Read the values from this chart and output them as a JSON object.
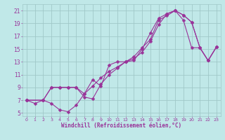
{
  "xlabel": "Windchill (Refroidissement éolien,°C)",
  "bg_color": "#c0e8e8",
  "grid_color": "#a0c8c8",
  "line_color": "#993399",
  "xlim": [
    -0.5,
    23.5
  ],
  "ylim": [
    4.5,
    22.0
  ],
  "xticks": [
    0,
    1,
    2,
    3,
    4,
    5,
    6,
    7,
    8,
    9,
    10,
    11,
    12,
    13,
    14,
    15,
    16,
    17,
    18,
    19,
    20,
    21,
    22,
    23
  ],
  "yticks": [
    5,
    7,
    9,
    11,
    13,
    15,
    17,
    19,
    21
  ],
  "line1_x": [
    0,
    1,
    2,
    3,
    4,
    5,
    6,
    7,
    8,
    9,
    10,
    11,
    12,
    13,
    14,
    15,
    16,
    17,
    18,
    19,
    20,
    21,
    22,
    23
  ],
  "line1_y": [
    7.0,
    6.5,
    7.0,
    6.5,
    5.5,
    5.2,
    6.2,
    8.0,
    10.2,
    9.2,
    12.5,
    13.0,
    13.0,
    13.8,
    15.2,
    16.5,
    19.5,
    20.2,
    21.0,
    20.3,
    19.2,
    15.2,
    13.2,
    15.3
  ],
  "line2_x": [
    0,
    2,
    3,
    4,
    5,
    6,
    7,
    8,
    9,
    10,
    11,
    12,
    13,
    14,
    15,
    16,
    17,
    18,
    19,
    20,
    21,
    22,
    23
  ],
  "line2_y": [
    7.0,
    7.0,
    9.0,
    9.0,
    9.0,
    9.0,
    8.0,
    9.2,
    10.5,
    11.5,
    12.2,
    13.0,
    13.5,
    14.5,
    16.2,
    18.8,
    20.5,
    21.0,
    20.3,
    19.2,
    15.2,
    13.2,
    15.3
  ],
  "line3_x": [
    0,
    2,
    3,
    4,
    5,
    6,
    7,
    8,
    9,
    10,
    11,
    12,
    13,
    14,
    15,
    16,
    17,
    18,
    19,
    20,
    21,
    22,
    23
  ],
  "line3_y": [
    7.0,
    7.0,
    9.0,
    9.0,
    9.0,
    9.0,
    7.5,
    7.2,
    9.5,
    11.0,
    12.0,
    13.0,
    13.2,
    15.0,
    17.5,
    19.8,
    20.5,
    21.0,
    19.5,
    15.2,
    15.2,
    13.2,
    15.3
  ]
}
